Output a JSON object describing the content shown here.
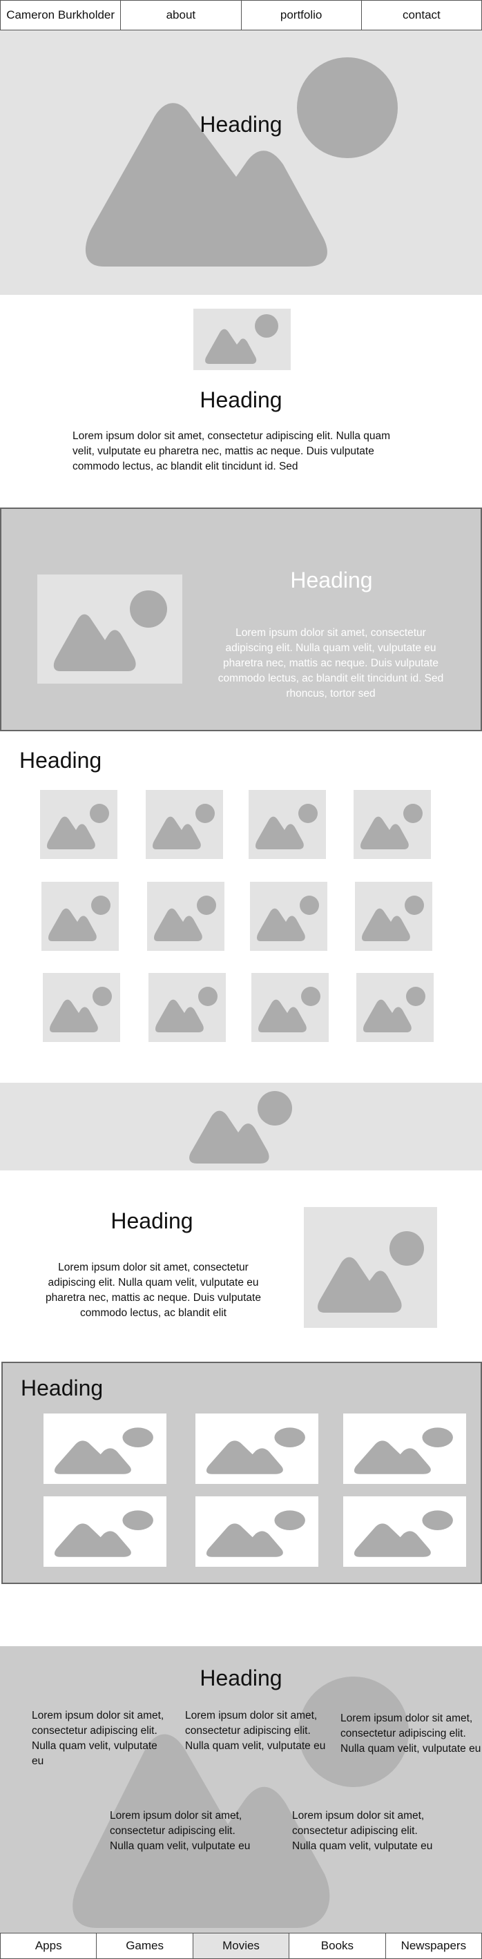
{
  "top_nav": {
    "items": [
      "Cameron Burkholder",
      "about",
      "portfolio",
      "contact"
    ]
  },
  "hero": {
    "heading": "Heading"
  },
  "section_intro": {
    "heading": "Heading",
    "text": "Lorem ipsum dolor sit amet, consectetur adipiscing elit. Nulla quam velit, vulputate eu pharetra nec, mattis ac neque. Duis vulputate commodo lectus, ac blandit elit tincidunt id. Sed"
  },
  "feature_panel": {
    "heading": "Heading",
    "text": "Lorem ipsum dolor sit amet, consectetur adipiscing elit. Nulla quam velit, vulputate eu pharetra nec, mattis ac neque. Duis vulputate commodo lectus, ac blandit elit tincidunt id. Sed rhoncus, tortor sed"
  },
  "gallery": {
    "heading": "Heading"
  },
  "split_section": {
    "heading": "Heading",
    "text": "Lorem ipsum dolor sit amet, consectetur adipiscing elit. Nulla quam velit, vulputate eu pharetra nec, mattis ac neque. Duis vulputate commodo lectus, ac blandit elit"
  },
  "grid_panel": {
    "heading": "Heading"
  },
  "columns_section": {
    "heading": "Heading",
    "columns": [
      "Lorem ipsum dolor sit amet, consectetur adipiscing elit. Nulla quam velit, vulputate eu",
      "Lorem ipsum dolor sit amet, consectetur adipiscing elit. Nulla quam velit, vulputate eu",
      "Lorem ipsum dolor sit amet, consectetur adipiscing elit. Nulla quam velit, vulputate eu",
      "Lorem ipsum dolor sit amet, consectetur adipiscing elit. Nulla quam velit, vulputate eu",
      "Lorem ipsum dolor sit amet, consectetur adipiscing elit. Nulla quam velit, vulputate eu"
    ]
  },
  "bottom_nav": {
    "items": [
      "Apps",
      "Games",
      "Movies",
      "Books",
      "Newspapers"
    ],
    "active": "Movies"
  },
  "colors": {
    "placeholder_bg": "#e3e3e3",
    "placeholder_shape": "#acacac",
    "panel_bg": "#cbcbcb",
    "border": "#666666"
  }
}
